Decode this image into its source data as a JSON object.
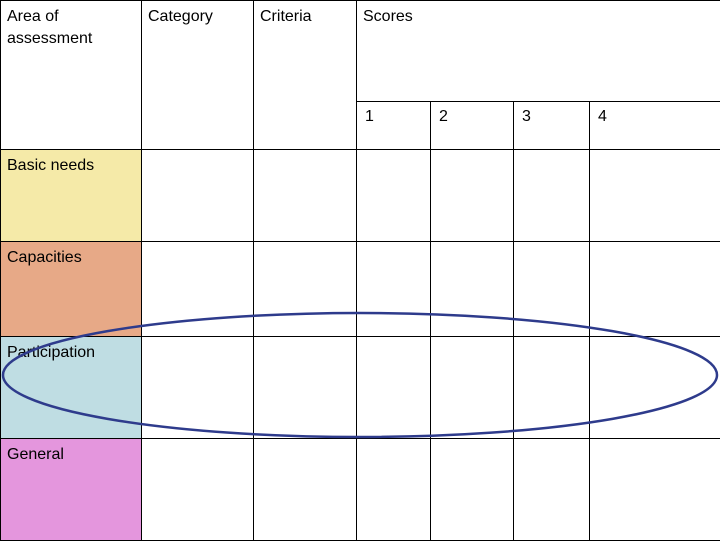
{
  "headers": {
    "area": "Area of assessment",
    "category": "Category",
    "criteria": "Criteria",
    "scores": "Scores",
    "score_levels": [
      "1",
      "2",
      "3",
      "4"
    ]
  },
  "rows": [
    {
      "area": "Basic needs",
      "color": "#f5eaa8"
    },
    {
      "area": "Capacities",
      "color": "#e7a987"
    },
    {
      "area": "Participation",
      "color": "#bfdde3"
    },
    {
      "area": "General",
      "color": "#e496dd"
    }
  ],
  "highlight": {
    "color": "#2e3b8c",
    "target_row": "Participation"
  }
}
